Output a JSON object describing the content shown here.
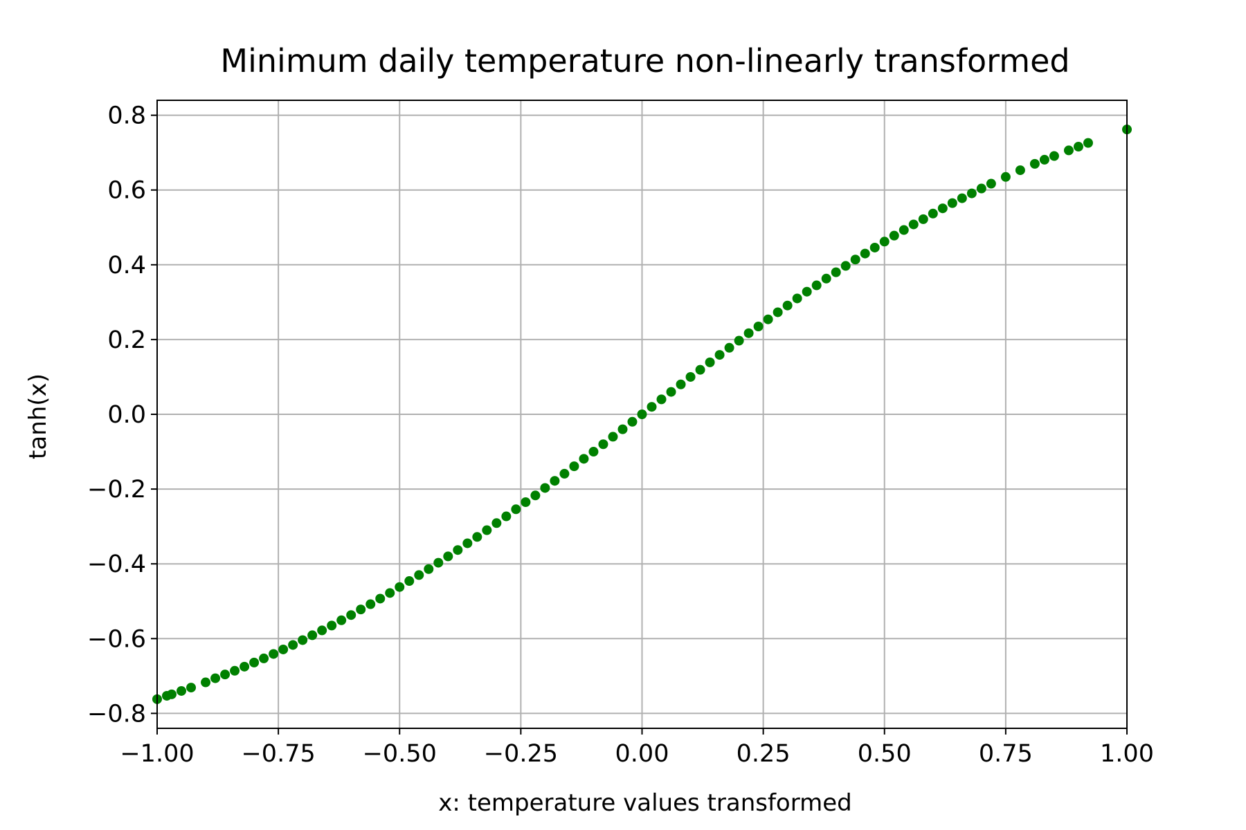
{
  "chart_data": {
    "type": "scatter",
    "title": "Minimum daily temperature non-linearly transformed",
    "xlabel": "x: temperature values transformed",
    "ylabel": "tanh(x)",
    "xlim": [
      -1.0,
      1.0
    ],
    "ylim": [
      -0.84,
      0.84
    ],
    "x_ticks": [
      -1.0,
      -0.75,
      -0.5,
      -0.25,
      0.0,
      0.25,
      0.5,
      0.75,
      1.0
    ],
    "x_tick_labels": [
      "−1.00",
      "−0.75",
      "−0.50",
      "−0.25",
      "0.00",
      "0.25",
      "0.50",
      "0.75",
      "1.00"
    ],
    "y_ticks": [
      -0.8,
      -0.6,
      -0.4,
      -0.2,
      0.0,
      0.2,
      0.4,
      0.6,
      0.8
    ],
    "y_tick_labels": [
      "−0.8",
      "−0.6",
      "−0.4",
      "−0.2",
      "0.0",
      "0.2",
      "0.4",
      "0.6",
      "0.8"
    ],
    "grid": true,
    "marker_color": "#008000",
    "series": [
      {
        "x": [
          -1.0,
          -0.98,
          -0.97,
          -0.95,
          -0.93,
          -0.9,
          -0.88,
          -0.86,
          -0.84,
          -0.82,
          -0.8,
          -0.78,
          -0.76,
          -0.74,
          -0.72,
          -0.7,
          -0.68,
          -0.66,
          -0.64,
          -0.62,
          -0.6,
          -0.58,
          -0.56,
          -0.54,
          -0.52,
          -0.5,
          -0.48,
          -0.46,
          -0.44,
          -0.42,
          -0.4,
          -0.38,
          -0.36,
          -0.34,
          -0.32,
          -0.3,
          -0.28,
          -0.26,
          -0.24,
          -0.22,
          -0.2,
          -0.18,
          -0.16,
          -0.14,
          -0.12,
          -0.1,
          -0.08,
          -0.06,
          -0.04,
          -0.02,
          0.0,
          0.02,
          0.04,
          0.06,
          0.08,
          0.1,
          0.12,
          0.14,
          0.16,
          0.18,
          0.2,
          0.22,
          0.24,
          0.26,
          0.28,
          0.3,
          0.32,
          0.34,
          0.36,
          0.38,
          0.4,
          0.42,
          0.44,
          0.46,
          0.48,
          0.5,
          0.52,
          0.54,
          0.56,
          0.58,
          0.6,
          0.62,
          0.64,
          0.66,
          0.68,
          0.7,
          0.72,
          0.75,
          0.78,
          0.81,
          0.83,
          0.85,
          0.88,
          0.9,
          0.92,
          1.0
        ],
        "y": [
          -0.762,
          -0.753,
          -0.749,
          -0.74,
          -0.731,
          -0.717,
          -0.706,
          -0.696,
          -0.686,
          -0.675,
          -0.664,
          -0.653,
          -0.641,
          -0.629,
          -0.617,
          -0.604,
          -0.591,
          -0.578,
          -0.565,
          -0.551,
          -0.537,
          -0.522,
          -0.508,
          -0.493,
          -0.478,
          -0.462,
          -0.446,
          -0.43,
          -0.414,
          -0.397,
          -0.38,
          -0.363,
          -0.345,
          -0.328,
          -0.31,
          -0.291,
          -0.273,
          -0.254,
          -0.235,
          -0.217,
          -0.197,
          -0.178,
          -0.159,
          -0.139,
          -0.119,
          -0.1,
          -0.08,
          -0.06,
          -0.04,
          -0.02,
          0.0,
          0.02,
          0.04,
          0.06,
          0.08,
          0.1,
          0.119,
          0.139,
          0.159,
          0.178,
          0.197,
          0.217,
          0.235,
          0.254,
          0.273,
          0.291,
          0.31,
          0.328,
          0.345,
          0.363,
          0.38,
          0.397,
          0.414,
          0.43,
          0.446,
          0.462,
          0.478,
          0.493,
          0.508,
          0.522,
          0.537,
          0.551,
          0.565,
          0.578,
          0.591,
          0.604,
          0.617,
          0.635,
          0.653,
          0.67,
          0.681,
          0.691,
          0.706,
          0.716,
          0.726,
          0.762
        ]
      }
    ]
  }
}
